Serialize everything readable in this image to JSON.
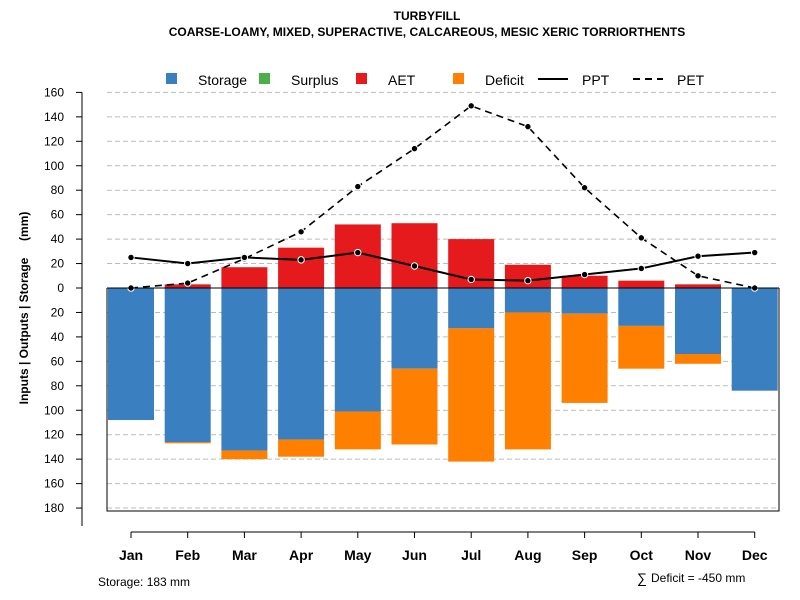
{
  "chart_data": {
    "type": "bar",
    "title": "TURBYFILL",
    "subtitle": "COARSE-LOAMY, MIXED, SUPERACTIVE, CALCAREOUS, MESIC XERIC TORRIORTHENTS",
    "ylabel": "Inputs | Outputs | Storage     (mm)",
    "ylim": [
      -185,
      160
    ],
    "y_ticks": [
      160,
      140,
      120,
      100,
      80,
      60,
      40,
      20,
      0,
      -20,
      -40,
      -60,
      -80,
      -100,
      -120,
      -140,
      -160,
      -180
    ],
    "categories": [
      "Jan",
      "Feb",
      "Mar",
      "Apr",
      "May",
      "Jun",
      "Jul",
      "Aug",
      "Sep",
      "Oct",
      "Nov",
      "Dec"
    ],
    "legend": [
      {
        "name": "Storage",
        "color": "#3a7fbf",
        "type": "box"
      },
      {
        "name": "Surplus",
        "color": "#4daf4a",
        "type": "box"
      },
      {
        "name": "AET",
        "color": "#e41a1c",
        "type": "box"
      },
      {
        "name": "Deficit",
        "color": "#ff7f00",
        "type": "box"
      },
      {
        "name": "PPT",
        "color": "#000000",
        "type": "solid"
      },
      {
        "name": "PET",
        "color": "#000000",
        "type": "dashed"
      }
    ],
    "series": [
      {
        "name": "Storage",
        "color": "#3a7fbf",
        "values": [
          108,
          126,
          133,
          124,
          101,
          66,
          33,
          20,
          21,
          31,
          54,
          84
        ]
      },
      {
        "name": "Surplus",
        "color": "#4daf4a",
        "values": [
          0,
          0,
          0,
          0,
          0,
          0,
          0,
          0,
          0,
          0,
          0,
          0
        ]
      },
      {
        "name": "AET",
        "color": "#e41a1c",
        "values": [
          0,
          3,
          17,
          33,
          52,
          53,
          40,
          19,
          10,
          6,
          3,
          0
        ]
      },
      {
        "name": "Deficit",
        "color": "#ff7f00",
        "values": [
          0,
          1,
          7,
          14,
          31,
          62,
          109,
          112,
          73,
          35,
          8,
          0
        ]
      },
      {
        "name": "PPT",
        "color": "#000000",
        "values": [
          25,
          20,
          25,
          23,
          29,
          18,
          7,
          6,
          11,
          16,
          26,
          29
        ]
      },
      {
        "name": "PET",
        "color": "#000000",
        "values": [
          0,
          4,
          24,
          46,
          83,
          114,
          149,
          132,
          82,
          41,
          10,
          0
        ]
      }
    ]
  },
  "footer": {
    "storage_label": "Storage: 183 mm",
    "deficit_symbol": "∑",
    "deficit_label": "Deficit = -450 mm"
  }
}
